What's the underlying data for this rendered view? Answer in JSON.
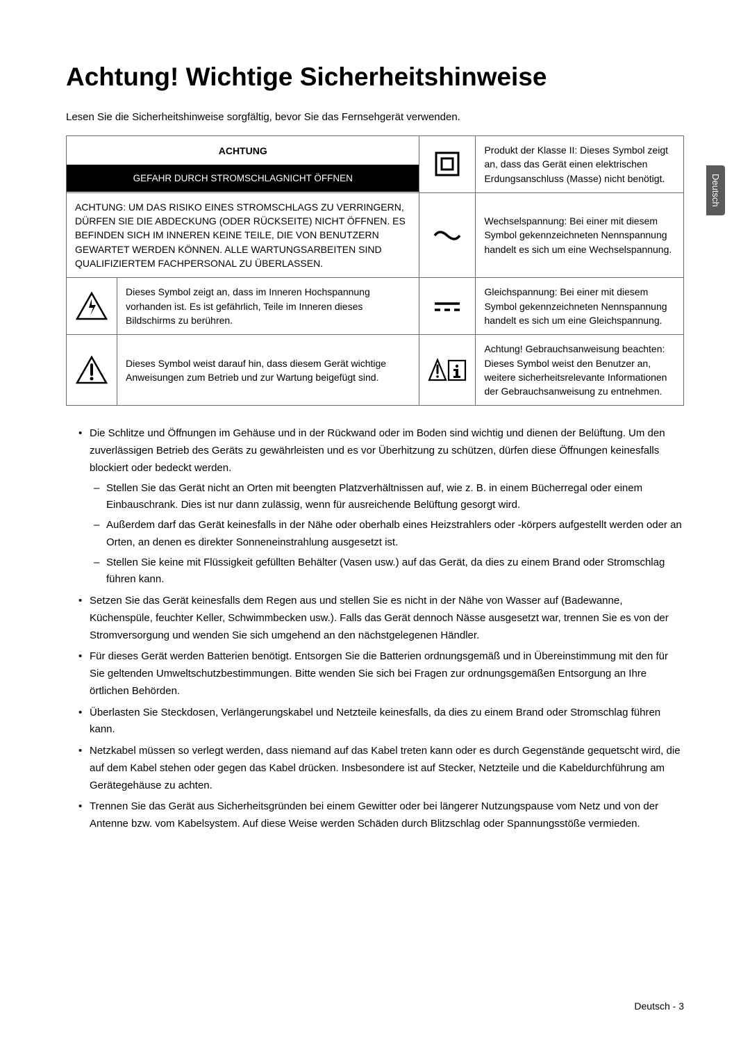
{
  "title": "Achtung! Wichtige Sicherheitshinweise",
  "intro": "Lesen Sie die Sicherheitshinweise sorgfältig, bevor Sie das Fernsehgerät verwenden.",
  "side_tab": "Deutsch",
  "table": {
    "header_top": "ACHTUNG",
    "header_bottom": "GEFAHR DURCH STROMSCHLAGNICHT ÖFFNEN",
    "left_rows": [
      "ACHTUNG: UM DAS RISIKO EINES STROMSCHLAGS ZU VERRINGERN, DÜRFEN SIE DIE ABDECKUNG (ODER RÜCKSEITE) NICHT ÖFFNEN. ES BEFINDEN SICH IM INNEREN KEINE TEILE, DIE VON BENUTZERN GEWARTET WERDEN KÖNNEN. ALLE WARTUNGSARBEITEN SIND QUALIFIZIERTEM FACHPERSONAL ZU ÜBERLASSEN.",
      "Dieses Symbol zeigt an, dass im Inneren Hochspannung vorhanden ist. Es ist gefährlich, Teile im Inneren dieses Bildschirms zu berühren.",
      "Dieses Symbol weist darauf hin, dass diesem Gerät wichtige Anweisungen zum Betrieb und zur Wartung beigefügt sind."
    ],
    "right_rows": [
      "Produkt der Klasse II: Dieses Symbol zeigt an, dass das Gerät einen elektrischen Erdungsanschluss (Masse) nicht benötigt.",
      "Wechselspannung: Bei einer mit diesem Symbol gekennzeichneten Nennspannung handelt es sich um eine Wechselspannung.",
      "Gleichspannung: Bei einer mit diesem Symbol gekennzeichneten Nennspannung handelt es sich um eine Gleichspannung.",
      "Achtung! Gebrauchsanweisung beachten: Dieses Symbol weist den Benutzer an, weitere sicherheitsrelevante Informationen der Gebrauchsanweisung zu entnehmen."
    ]
  },
  "bullets": [
    {
      "text": "Die Schlitze und Öffnungen im Gehäuse und in der Rückwand oder im Boden sind wichtig und dienen der Belüftung. Um den zuverlässigen Betrieb des Geräts zu gewährleisten und es vor Überhitzung zu schützen, dürfen diese Öffnungen keinesfalls blockiert oder bedeckt werden.",
      "sub": [
        "Stellen Sie das Gerät nicht an Orten mit beengten Platzverhältnissen auf, wie z. B. in einem Bücherregal oder einem Einbauschrank. Dies ist nur dann zulässig, wenn für ausreichende Belüftung gesorgt wird.",
        "Außerdem darf das Gerät keinesfalls in der Nähe oder oberhalb eines Heizstrahlers oder -körpers aufgestellt werden oder an Orten, an denen es direkter Sonneneinstrahlung ausgesetzt ist.",
        "Stellen Sie keine mit Flüssigkeit gefüllten Behälter (Vasen usw.) auf das Gerät, da dies zu einem Brand oder Stromschlag führen kann."
      ]
    },
    {
      "text": "Setzen Sie das Gerät keinesfalls dem Regen aus und stellen Sie es nicht in der Nähe von Wasser auf (Badewanne, Küchenspüle, feuchter Keller, Schwimmbecken usw.). Falls das Gerät dennoch Nässe ausgesetzt war, trennen Sie es von der Stromversorgung und wenden Sie sich umgehend an den nächstgelegenen Händler."
    },
    {
      "text": "Für dieses Gerät werden Batterien benötigt. Entsorgen Sie die Batterien ordnungsgemäß und in Übereinstimmung mit den für Sie geltenden Umweltschutzbestimmungen. Bitte wenden Sie sich bei Fragen zur ordnungsgemäßen Entsorgung an Ihre örtlichen Behörden."
    },
    {
      "text": "Überlasten Sie Steckdosen, Verlängerungskabel und Netzteile keinesfalls, da dies zu einem Brand oder Stromschlag führen kann."
    },
    {
      "text": "Netzkabel müssen so verlegt werden, dass niemand auf das Kabel treten kann oder es durch Gegenstände gequetscht wird, die auf dem Kabel stehen oder gegen das Kabel drücken. Insbesondere ist auf Stecker, Netzteile und die Kabeldurchführung am Gerätegehäuse zu achten."
    },
    {
      "text": "Trennen Sie das Gerät aus Sicherheitsgründen bei einem Gewitter oder bei längerer Nutzungspause vom Netz und von der Antenne bzw. vom Kabelsystem. Auf diese Weise werden Schäden durch Blitzschlag oder Spannungsstöße vermieden."
    }
  ],
  "page_num": "Deutsch - 3",
  "colors": {
    "page_bg": "#ffffff",
    "text": "#000000",
    "border": "#6a6a6a",
    "header_bg": "#000000",
    "header_fg": "#ffffff",
    "tab_bg": "#5a5a5a"
  },
  "fonts": {
    "title_size_pt": 28,
    "body_size_pt": 11,
    "table_size_pt": 10.5
  }
}
